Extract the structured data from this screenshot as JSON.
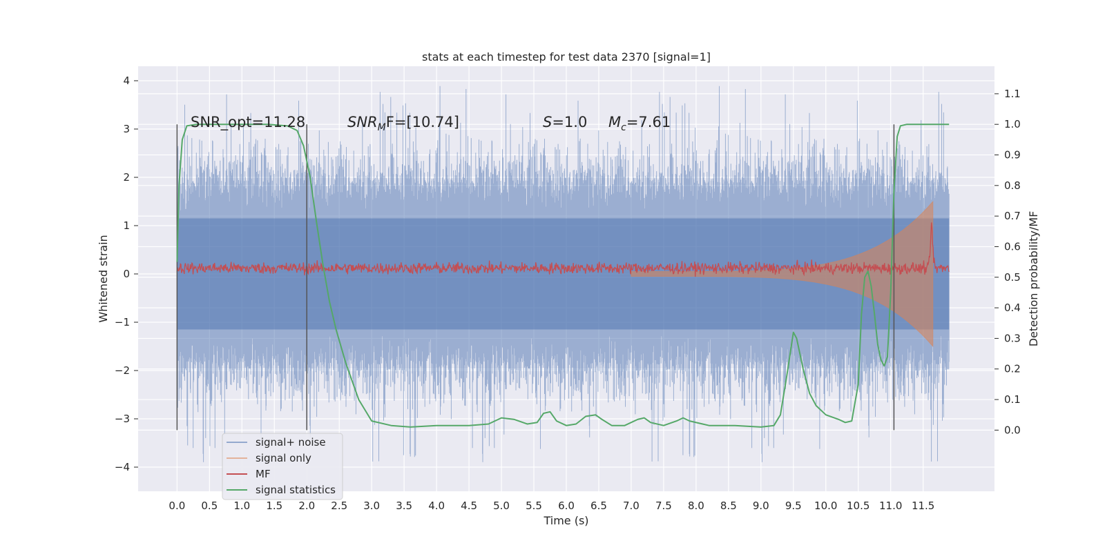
{
  "chart_data": {
    "type": "line",
    "title": "stats at each timestep for test data 2370 [signal=1]",
    "xlabel": "Time (s)",
    "ylabel": "Whitened strain",
    "y2label": "Detection probability/MF",
    "xlim": [
      -0.6,
      12.6
    ],
    "ylim": [
      -4.5,
      4.3
    ],
    "y2lim": [
      -0.2,
      1.19
    ],
    "xticks": [
      "0.0",
      "0.5",
      "1.0",
      "1.5",
      "2.0",
      "2.5",
      "3.0",
      "3.5",
      "4.0",
      "4.5",
      "5.0",
      "5.5",
      "6.0",
      "6.5",
      "7.0",
      "7.5",
      "8.0",
      "8.5",
      "9.0",
      "9.5",
      "10.0",
      "10.5",
      "11.0",
      "11.5"
    ],
    "yticks": [
      "4",
      "3",
      "2",
      "1",
      "0",
      "−1",
      "−2",
      "−3",
      "−4"
    ],
    "y2ticks": [
      "1.1",
      "1.0",
      "0.9",
      "0.8",
      "0.7",
      "0.6",
      "0.5",
      "0.4",
      "0.3",
      "0.2",
      "0.1",
      "0.0"
    ],
    "grid": true,
    "legend_position": "lower-left",
    "annotations": {
      "snr_opt": "SNR_opt=11.28",
      "snr_mf_main": "SNR",
      "snr_mf_sub": "M",
      "snr_mf_rest": "F=[10.74]",
      "s_main": "S",
      "s_rest": "=1.0",
      "mc_main": "M",
      "mc_sub": "c",
      "mc_rest": "=7.61"
    },
    "vlines": [
      0.0,
      2.0,
      11.05
    ],
    "series": [
      {
        "name": "signal+ noise",
        "color": "#4c72b0",
        "x_range": [
          0.0,
          11.9
        ],
        "typical_amplitude": 1.8,
        "peak_amplitude": 3.9,
        "samples": 2400
      },
      {
        "name": "signal only",
        "color": "#dd8452",
        "x_range": [
          7.0,
          11.65
        ],
        "envelope_start": 0.05,
        "envelope_end": 1.5
      },
      {
        "name": "MF",
        "color": "#c44e52",
        "x_range": [
          0.0,
          11.9
        ],
        "baseline": 0.12,
        "spike_x": 11.63,
        "spike_y": 1.0
      },
      {
        "name": "signal statistics",
        "color": "#55a868",
        "axis": "right",
        "x": [
          0.0,
          0.03,
          0.08,
          0.15,
          0.3,
          0.6,
          1.0,
          1.4,
          1.7,
          1.85,
          1.95,
          2.05,
          2.15,
          2.25,
          2.35,
          2.45,
          2.6,
          2.8,
          3.0,
          3.3,
          3.6,
          4.0,
          4.5,
          4.8,
          5.0,
          5.2,
          5.4,
          5.55,
          5.65,
          5.75,
          5.85,
          6.0,
          6.15,
          6.3,
          6.45,
          6.55,
          6.7,
          6.9,
          7.1,
          7.2,
          7.3,
          7.5,
          7.7,
          7.8,
          7.9,
          8.2,
          8.6,
          9.0,
          9.2,
          9.3,
          9.4,
          9.5,
          9.55,
          9.65,
          9.75,
          9.85,
          10.0,
          10.2,
          10.3,
          10.4,
          10.5,
          10.55,
          10.6,
          10.65,
          10.7,
          10.75,
          10.8,
          10.85,
          10.9,
          10.95,
          11.0,
          11.05,
          11.1,
          11.15,
          11.25,
          11.5,
          11.9
        ],
        "y": [
          0.55,
          0.8,
          0.95,
          0.995,
          1.0,
          1.0,
          1.0,
          1.0,
          0.995,
          0.98,
          0.93,
          0.83,
          0.68,
          0.54,
          0.42,
          0.33,
          0.22,
          0.1,
          0.03,
          0.015,
          0.01,
          0.015,
          0.015,
          0.02,
          0.04,
          0.035,
          0.02,
          0.025,
          0.055,
          0.06,
          0.03,
          0.015,
          0.02,
          0.045,
          0.05,
          0.035,
          0.015,
          0.015,
          0.035,
          0.04,
          0.025,
          0.015,
          0.03,
          0.04,
          0.03,
          0.015,
          0.015,
          0.01,
          0.015,
          0.05,
          0.18,
          0.32,
          0.3,
          0.2,
          0.12,
          0.08,
          0.05,
          0.035,
          0.025,
          0.03,
          0.15,
          0.38,
          0.5,
          0.52,
          0.47,
          0.38,
          0.28,
          0.23,
          0.21,
          0.24,
          0.45,
          0.78,
          0.96,
          0.995,
          1.0,
          1.0,
          1.0
        ]
      }
    ]
  }
}
